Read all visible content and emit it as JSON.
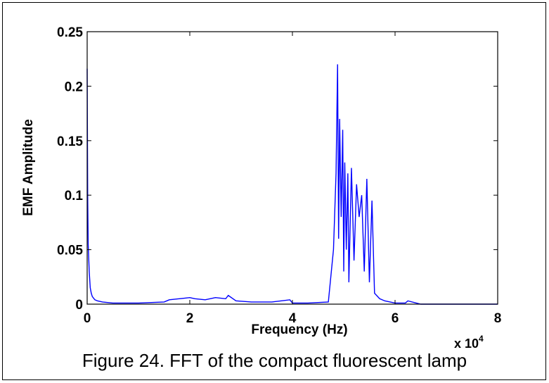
{
  "caption": "Figure 24. FFT of the compact fluorescent lamp",
  "chart_data": {
    "type": "line",
    "title": "",
    "xlabel": "Frequency (Hz)",
    "ylabel": "EMF Amplitude",
    "x_multiplier_label": "x 10",
    "x_multiplier_exponent": "4",
    "x_unit_scale": 10000,
    "xlim": [
      0,
      8
    ],
    "ylim": [
      0,
      0.25
    ],
    "x_ticks": [
      0,
      2,
      4,
      6,
      8
    ],
    "x_tick_labels": [
      "0",
      "2",
      "4",
      "6",
      "8"
    ],
    "y_ticks": [
      0,
      0.05,
      0.1,
      0.15,
      0.2,
      0.25
    ],
    "y_tick_labels": [
      "0",
      "0.05",
      "0.1",
      "0.15",
      "0.2",
      "0.25"
    ],
    "line_color": "#0000ff",
    "grid": false,
    "series": [
      {
        "x": [
          0,
          0.01,
          0.02,
          0.04,
          0.06,
          0.08,
          0.1,
          0.15,
          0.2,
          0.3,
          0.5,
          0.8,
          1.0,
          1.5,
          1.6,
          1.8,
          2.0,
          2.1,
          2.3,
          2.5,
          2.7,
          2.75,
          2.9,
          3.2,
          3.6,
          3.95,
          4.0,
          4.3,
          4.7,
          4.8,
          4.85,
          4.88,
          4.9,
          4.92,
          4.95,
          4.98,
          5.0,
          5.02,
          5.05,
          5.08,
          5.1,
          5.15,
          5.2,
          5.25,
          5.3,
          5.35,
          5.4,
          5.45,
          5.5,
          5.55,
          5.6,
          5.7,
          5.8,
          6.0,
          6.2,
          6.25,
          6.5,
          7.0,
          8.0
        ],
        "y": [
          0.216,
          0.1,
          0.055,
          0.03,
          0.015,
          0.01,
          0.007,
          0.004,
          0.003,
          0.002,
          0.001,
          0.001,
          0.001,
          0.002,
          0.004,
          0.005,
          0.006,
          0.005,
          0.004,
          0.006,
          0.005,
          0.008,
          0.003,
          0.002,
          0.002,
          0.004,
          0.001,
          0.001,
          0.002,
          0.05,
          0.12,
          0.22,
          0.06,
          0.17,
          0.08,
          0.16,
          0.03,
          0.13,
          0.05,
          0.12,
          0.02,
          0.125,
          0.04,
          0.11,
          0.08,
          0.1,
          0.03,
          0.115,
          0.02,
          0.095,
          0.01,
          0.005,
          0.003,
          0.001,
          0.001,
          0.003,
          0.0,
          0.0,
          0.0
        ]
      }
    ]
  }
}
